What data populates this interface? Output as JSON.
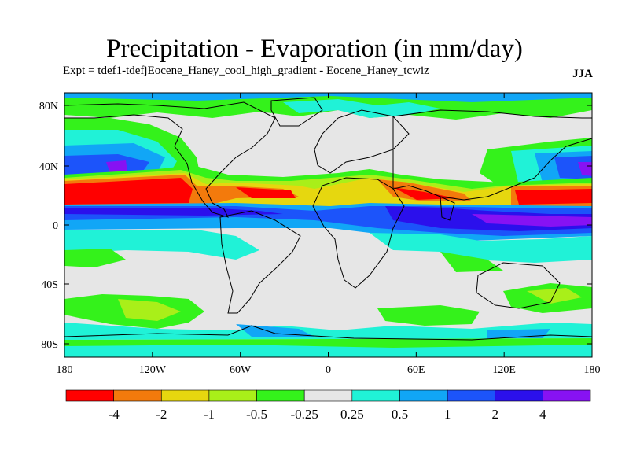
{
  "title": "Precipitation - Evaporation (in mm/day)",
  "subtitle": "Expt = tdef1-tdefjEocene_Haney_cool_high_gradient - Eocene_Haney_tcwiz",
  "season": "JJA",
  "lat_ticks": [
    "80N",
    "40N",
    "0",
    "40S",
    "80S"
  ],
  "lon_ticks": [
    "180",
    "120W",
    "60W",
    "0",
    "60E",
    "120E",
    "180"
  ],
  "colorbar": {
    "colors": [
      "#ff0000",
      "#f37a0c",
      "#e6d70f",
      "#a9ef19",
      "#34f21b",
      "#e6e6e6",
      "#20f2d7",
      "#11a6f6",
      "#1c54fa",
      "#2b10ec",
      "#8712f3"
    ],
    "labels": [
      "-4",
      "-2",
      "-1",
      "-0.5",
      "-0.25",
      "0.25",
      "0.5",
      "1",
      "2",
      "4"
    ]
  }
}
